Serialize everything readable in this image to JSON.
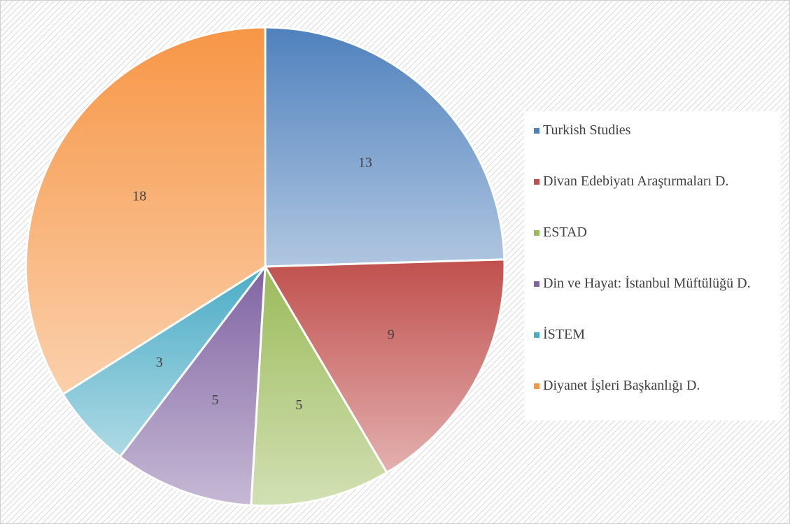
{
  "chart_data": {
    "type": "pie",
    "categories": [
      "Turkish Studies",
      "Divan Edebiyatı Araştırmaları D.",
      "ESTAD",
      "Din ve Hayat: İstanbul Müftülüğü D.",
      "İSTEM",
      "Diyanet İşleri Başkanlığı D."
    ],
    "values": [
      13,
      9,
      5,
      5,
      3,
      18
    ],
    "colors": [
      "#4f81bd",
      "#c0504d",
      "#9bbb59",
      "#8064a2",
      "#4bacc6",
      "#f79646"
    ],
    "legend": "right"
  }
}
